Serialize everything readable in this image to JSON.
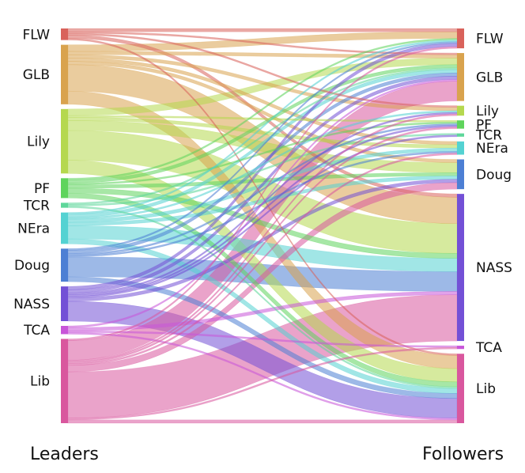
{
  "captions": {
    "left": "Leaders",
    "right": "Followers"
  },
  "left_nodes": [
    {
      "id": "FLW",
      "label": "FLW",
      "color": "#d9625b"
    },
    {
      "id": "GLB",
      "label": "GLB",
      "color": "#d9a34e"
    },
    {
      "id": "Lily",
      "label": "Lily",
      "color": "#b5d84f"
    },
    {
      "id": "PF",
      "label": "PF",
      "color": "#5fd45c"
    },
    {
      "id": "TCR",
      "label": "TCR",
      "color": "#5ed79a"
    },
    {
      "id": "NEra",
      "label": "NEra",
      "color": "#54d2d2"
    },
    {
      "id": "Doug",
      "label": "Doug",
      "color": "#4d7fd4"
    },
    {
      "id": "NASS",
      "label": "NASS",
      "color": "#7350d6"
    },
    {
      "id": "TCA",
      "label": "TCA",
      "color": "#c855d9"
    },
    {
      "id": "Lib",
      "label": "Lib",
      "color": "#d9579e"
    }
  ],
  "right_nodes": [
    {
      "id": "FLW",
      "label": "FLW",
      "color": "#d9625b"
    },
    {
      "id": "GLB",
      "label": "GLB",
      "color": "#d9a34e"
    },
    {
      "id": "Lily",
      "label": "Lily",
      "color": "#b5d84f"
    },
    {
      "id": "PF",
      "label": "PF",
      "color": "#5fd45c"
    },
    {
      "id": "TCR",
      "label": "TCR",
      "color": "#5ed79a"
    },
    {
      "id": "NEra",
      "label": "NEra",
      "color": "#54d2d2"
    },
    {
      "id": "Doug",
      "label": "Doug",
      "color": "#4d7fd4"
    },
    {
      "id": "NASS",
      "label": "NASS",
      "color": "#7350d6"
    },
    {
      "id": "TCA",
      "label": "TCA",
      "color": "#c855d9"
    },
    {
      "id": "Lib",
      "label": "Lib",
      "color": "#d9579e"
    }
  ],
  "links": [
    {
      "source": "FLW",
      "target": "FLW",
      "value": 1
    },
    {
      "source": "FLW",
      "target": "GLB",
      "value": 0.5
    },
    {
      "source": "FLW",
      "target": "Lily",
      "value": 0.5
    },
    {
      "source": "FLW",
      "target": "NASS",
      "value": 1
    },
    {
      "source": "FLW",
      "target": "Lib",
      "value": 0.5
    },
    {
      "source": "GLB",
      "target": "FLW",
      "value": 2
    },
    {
      "source": "GLB",
      "target": "GLB",
      "value": 1
    },
    {
      "source": "GLB",
      "target": "Lily",
      "value": 1
    },
    {
      "source": "GLB",
      "target": "NEra",
      "value": 1
    },
    {
      "source": "GLB",
      "target": "Doug",
      "value": 1
    },
    {
      "source": "GLB",
      "target": "NASS",
      "value": 8
    },
    {
      "source": "GLB",
      "target": "Lib",
      "value": 4
    },
    {
      "source": "Lily",
      "target": "GLB",
      "value": 2
    },
    {
      "source": "Lily",
      "target": "PF",
      "value": 0.5
    },
    {
      "source": "Lily",
      "target": "NEra",
      "value": 1
    },
    {
      "source": "Lily",
      "target": "Doug",
      "value": 3
    },
    {
      "source": "Lily",
      "target": "NASS",
      "value": 9
    },
    {
      "source": "Lily",
      "target": "Lib",
      "value": 4
    },
    {
      "source": "PF",
      "target": "FLW",
      "value": 0.5
    },
    {
      "source": "PF",
      "target": "GLB",
      "value": 1
    },
    {
      "source": "PF",
      "target": "PF",
      "value": 0.5
    },
    {
      "source": "PF",
      "target": "Doug",
      "value": 1
    },
    {
      "source": "PF",
      "target": "NASS",
      "value": 1.5
    },
    {
      "source": "PF",
      "target": "Lib",
      "value": 1.5
    },
    {
      "source": "TCR",
      "target": "GLB",
      "value": 0.5
    },
    {
      "source": "TCR",
      "target": "TCR",
      "value": 0.5
    },
    {
      "source": "TCR",
      "target": "Lib",
      "value": 0.5
    },
    {
      "source": "NEra",
      "target": "FLW",
      "value": 0.5
    },
    {
      "source": "NEra",
      "target": "GLB",
      "value": 1
    },
    {
      "source": "NEra",
      "target": "Lily",
      "value": 0.5
    },
    {
      "source": "NEra",
      "target": "NEra",
      "value": 1
    },
    {
      "source": "NEra",
      "target": "Doug",
      "value": 1
    },
    {
      "source": "NEra",
      "target": "NASS",
      "value": 4
    },
    {
      "source": "NEra",
      "target": "Lib",
      "value": 1.5
    },
    {
      "source": "Doug",
      "target": "FLW",
      "value": 0.5
    },
    {
      "source": "Doug",
      "target": "GLB",
      "value": 1
    },
    {
      "source": "Doug",
      "target": "PF",
      "value": 0.5
    },
    {
      "source": "Doug",
      "target": "NEra",
      "value": 0.5
    },
    {
      "source": "Doug",
      "target": "NASS",
      "value": 6
    },
    {
      "source": "Doug",
      "target": "Lib",
      "value": 1.5
    },
    {
      "source": "NASS",
      "target": "FLW",
      "value": 1
    },
    {
      "source": "NASS",
      "target": "GLB",
      "value": 1
    },
    {
      "source": "NASS",
      "target": "Lily",
      "value": 0.5
    },
    {
      "source": "NASS",
      "target": "PF",
      "value": 0.5
    },
    {
      "source": "NASS",
      "target": "TCR",
      "value": 0.5
    },
    {
      "source": "NASS",
      "target": "Doug",
      "value": 1
    },
    {
      "source": "NASS",
      "target": "Lib",
      "value": 6
    },
    {
      "source": "TCA",
      "target": "GLB",
      "value": 0.5
    },
    {
      "source": "TCA",
      "target": "NASS",
      "value": 1
    },
    {
      "source": "TCA",
      "target": "TCA",
      "value": 0.5
    },
    {
      "source": "TCA",
      "target": "Lib",
      "value": 0.5
    },
    {
      "source": "Lib",
      "target": "FLW",
      "value": 0.5
    },
    {
      "source": "Lib",
      "target": "GLB",
      "value": 6
    },
    {
      "source": "Lib",
      "target": "Lily",
      "value": 0.5
    },
    {
      "source": "Lib",
      "target": "PF",
      "value": 0.5
    },
    {
      "source": "Lib",
      "target": "NEra",
      "value": 0.5
    },
    {
      "source": "Lib",
      "target": "Doug",
      "value": 2
    },
    {
      "source": "Lib",
      "target": "NASS",
      "value": 14
    },
    {
      "source": "Lib",
      "target": "TCA",
      "value": 0.5
    },
    {
      "source": "Lib",
      "target": "Lib",
      "value": 1
    }
  ]
}
